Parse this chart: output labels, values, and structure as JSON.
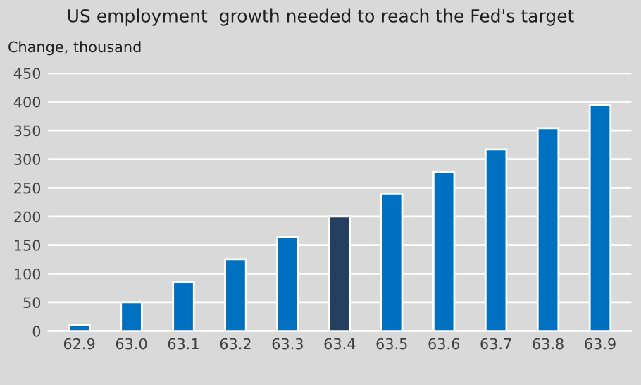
{
  "chart_data": {
    "type": "bar",
    "title": "US employment  growth needed to reach the Fed's target",
    "ylabel": "Change, thousand",
    "categories": [
      "62.9",
      "63.0",
      "63.1",
      "63.2",
      "63.3",
      "63.4",
      "63.5",
      "63.6",
      "63.7",
      "63.8",
      "63.9"
    ],
    "values": [
      10,
      50,
      86,
      125,
      164,
      200,
      240,
      278,
      317,
      354,
      394
    ],
    "colors": [
      "#0070c0",
      "#0070c0",
      "#0070c0",
      "#0070c0",
      "#0070c0",
      "#243f60",
      "#0070c0",
      "#0070c0",
      "#0070c0",
      "#0070c0",
      "#0070c0"
    ],
    "ylim": [
      0,
      450
    ],
    "yticks": [
      0,
      50,
      100,
      150,
      200,
      250,
      300,
      350,
      400,
      450
    ],
    "grid": "y",
    "legend": false
  }
}
